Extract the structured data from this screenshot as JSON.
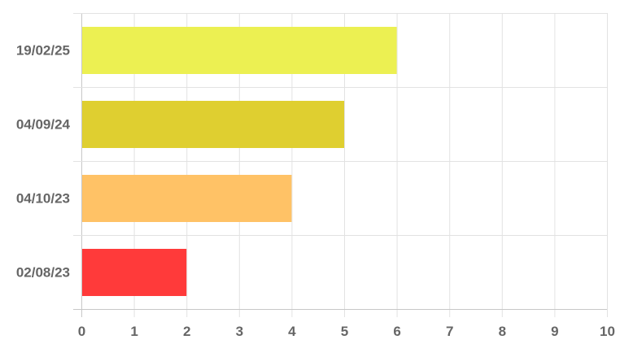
{
  "chart_data": {
    "type": "bar",
    "orientation": "horizontal",
    "categories": [
      "19/02/25",
      "04/09/24",
      "04/10/23",
      "02/08/23"
    ],
    "values": [
      6,
      5,
      4,
      2
    ],
    "colors": [
      "#ecf052",
      "#dfcf30",
      "#ffc266",
      "#ff3a3a"
    ],
    "xlim": [
      0,
      10
    ],
    "xticks": [
      "0",
      "1",
      "2",
      "3",
      "4",
      "5",
      "6",
      "7",
      "8",
      "9",
      "10"
    ],
    "grid": true,
    "legend": "none"
  }
}
